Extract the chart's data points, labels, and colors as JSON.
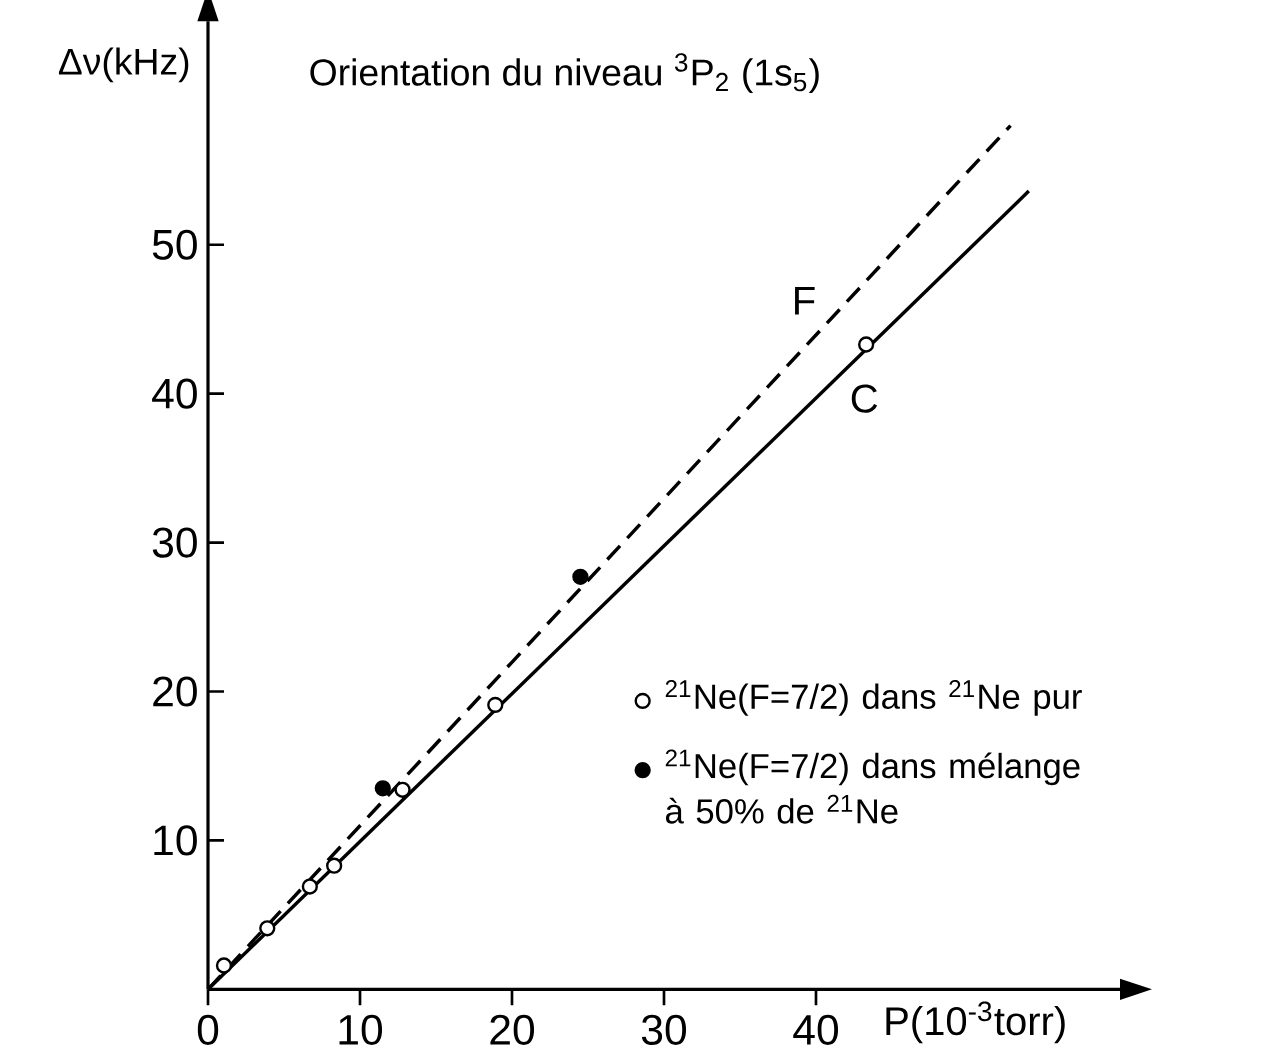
{
  "chart_data": {
    "type": "scatter",
    "title": "Orientation du niveau $^{3}$P$_{2}$ (1s$_{5}$)",
    "xlabel": "P(10$^{-3}$torr)",
    "ylabel": "Δν(kHz)",
    "xlim": [
      0,
      60
    ],
    "ylim": [
      0,
      65
    ],
    "xticks": [
      0,
      10,
      20,
      30,
      40
    ],
    "yticks": [
      10,
      20,
      30,
      40,
      50
    ],
    "legend": "bottom right",
    "series": [
      {
        "name": "$^{21}$Ne(F=7/2) dans $^{21}$Ne pur",
        "marker": "circle",
        "color": "#ffffff",
        "x": [
          1.05,
          3.9,
          6.7,
          8.3,
          12.8,
          18.9,
          43.3
        ],
        "values": [
          1.6,
          4.1,
          6.9,
          8.3,
          13.4,
          19.1,
          43.3
        ]
      },
      {
        "name": "$^{21}$Ne(F=7/2) dans mélange à 50% de $^{21}$Ne",
        "marker": "circle",
        "color": "#000000",
        "x": [
          11.5,
          24.5
        ],
        "values": [
          13.5,
          27.7
        ]
      },
      {
        "name": "F",
        "type": "line",
        "line_style": "dashed",
        "marker": "none",
        "color": "#000000",
        "x": [
          0,
          52.8
        ],
        "values": [
          0,
          58
        ]
      },
      {
        "name": "C",
        "type": "line",
        "line_style": "solid",
        "marker": "none",
        "color": "#000000",
        "x": [
          0,
          54
        ],
        "values": [
          0,
          53.6
        ]
      }
    ]
  }
}
